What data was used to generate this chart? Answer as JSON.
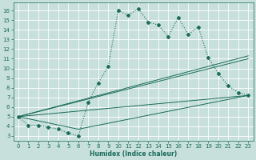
{
  "xlabel": "Humidex (Indice chaleur)",
  "bg_color": "#c8e0dc",
  "line_color": "#1a6b5a",
  "xlim": [
    -0.5,
    23.5
  ],
  "ylim": [
    2.5,
    16.8
  ],
  "yticks": [
    3,
    4,
    5,
    6,
    7,
    8,
    9,
    10,
    11,
    12,
    13,
    14,
    15,
    16
  ],
  "xticks": [
    0,
    1,
    2,
    3,
    4,
    5,
    6,
    7,
    8,
    9,
    10,
    11,
    12,
    13,
    14,
    15,
    16,
    17,
    18,
    19,
    20,
    21,
    22,
    23
  ],
  "curve_x": [
    0,
    1,
    2,
    3,
    4,
    5,
    6,
    7,
    8,
    9,
    10,
    11,
    12,
    13,
    14,
    15,
    16,
    17,
    18,
    19,
    20,
    21,
    22,
    23
  ],
  "curve_y": [
    5.0,
    4.1,
    4.1,
    3.9,
    3.7,
    3.3,
    3.0,
    6.5,
    8.5,
    10.2,
    16.0,
    15.5,
    16.2,
    14.8,
    14.5,
    13.3,
    15.3,
    13.5,
    14.3,
    11.1,
    9.5,
    8.2,
    7.5,
    7.2
  ],
  "line_fan": [
    {
      "x": [
        0,
        23
      ],
      "y": [
        5.0,
        7.2
      ]
    },
    {
      "x": [
        0,
        23
      ],
      "y": [
        5.0,
        11.0
      ]
    },
    {
      "x": [
        0,
        23
      ],
      "y": [
        5.0,
        11.3
      ]
    },
    {
      "x": [
        0,
        6,
        23
      ],
      "y": [
        5.0,
        3.7,
        7.2
      ]
    }
  ]
}
